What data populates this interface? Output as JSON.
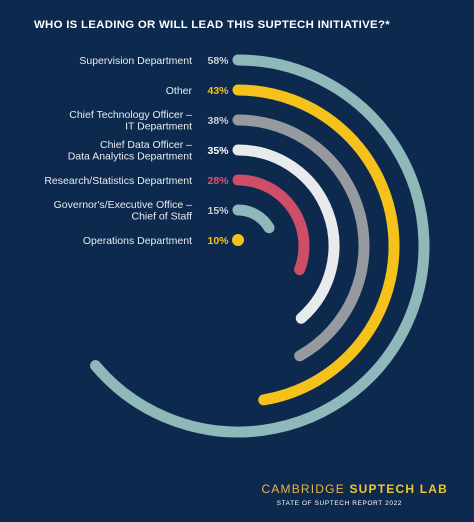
{
  "title": "WHO IS LEADING OR WILL LEAD THIS SUPTECH INITIATIVE?*",
  "chart_data": {
    "type": "radial-bar",
    "title": "WHO IS LEADING OR WILL LEAD THIS SUPTECH INITIATIVE?*",
    "categories": [
      [
        "Supervision Department"
      ],
      [
        "Other"
      ],
      [
        "Chief Technology Officer –",
        "IT Department"
      ],
      [
        "Chief Data Officer –",
        "Data Analytics Department"
      ],
      [
        "Research/Statistics Department"
      ],
      [
        "Governor's/Executive Office –",
        "Chief of Staff"
      ],
      [
        "Operations Department"
      ]
    ],
    "values": [
      58,
      43,
      38,
      35,
      28,
      15,
      10
    ],
    "value_labels": [
      "58%",
      "43%",
      "38%",
      "35%",
      "28%",
      "15%",
      "10%"
    ],
    "colors": [
      "#8fb8bb",
      "#f5c21b",
      "#969a9f",
      "#e8eaec",
      "#cf4e67",
      "#8fb8bb",
      "#f5c21b"
    ],
    "label_colors": [
      "#c9cfd6",
      "#f5c21b",
      "#c9cfd6",
      "#ffffff",
      "#e2506b",
      "#c9cfd6",
      "#f5c21b"
    ]
  },
  "footer": {
    "brand_prefix": "CAMBRIDGE ",
    "brand_suffix": "SUPTECH LAB",
    "subtitle": "STATE OF SUPTECH REPORT 2022"
  }
}
